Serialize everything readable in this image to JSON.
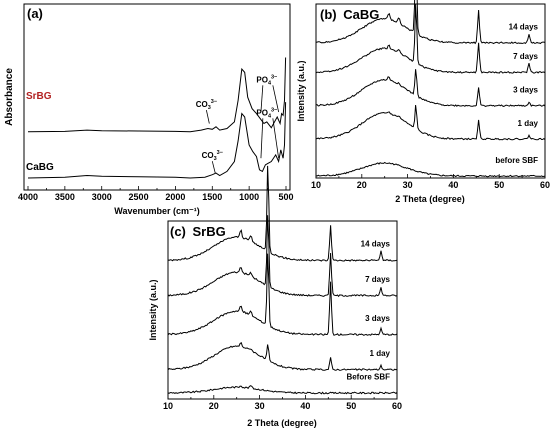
{
  "chart_data": [
    {
      "panel": "(a)",
      "type": "line",
      "title": "",
      "xlabel": "Wavenumber (cm⁻¹)",
      "ylabel": "Absorbance",
      "xlim": [
        4000,
        500
      ],
      "x_ticks": [
        4000,
        3500,
        3000,
        2500,
        2000,
        1500,
        1000,
        500
      ],
      "grid": false,
      "series": [
        {
          "name": "SrBG",
          "color": "#b22222",
          "offset": 0.56,
          "points": [
            [
              4000,
              0.0
            ],
            [
              3500,
              0.005
            ],
            [
              3200,
              0.02
            ],
            [
              3000,
              0.012
            ],
            [
              2500,
              0.01
            ],
            [
              2000,
              0.005
            ],
            [
              1800,
              0.0
            ],
            [
              1650,
              0.02
            ],
            [
              1560,
              0.04
            ],
            [
              1500,
              0.03
            ],
            [
              1450,
              0.06
            ],
            [
              1400,
              0.02
            ],
            [
              1300,
              0.04
            ],
            [
              1200,
              0.12
            ],
            [
              1150,
              0.38
            ],
            [
              1100,
              0.76
            ],
            [
              1060,
              0.72
            ],
            [
              1020,
              0.42
            ],
            [
              960,
              0.28
            ],
            [
              900,
              0.22
            ],
            [
              850,
              0.16
            ],
            [
              800,
              0.1
            ],
            [
              760,
              0.12
            ],
            [
              700,
              0.05
            ],
            [
              620,
              0.18
            ],
            [
              580,
              0.1
            ],
            [
              560,
              0.22
            ],
            [
              540,
              0.2
            ],
            [
              520,
              0.38
            ],
            [
              505,
              0.9
            ]
          ]
        },
        {
          "name": "CaBG",
          "color": "#000000",
          "offset": 0.0,
          "points": [
            [
              4000,
              0.0
            ],
            [
              3500,
              0.01
            ],
            [
              3200,
              0.03
            ],
            [
              3000,
              0.02
            ],
            [
              2500,
              0.015
            ],
            [
              2000,
              0.01
            ],
            [
              1800,
              0.0
            ],
            [
              1600,
              0.01
            ],
            [
              1500,
              0.04
            ],
            [
              1450,
              0.06
            ],
            [
              1400,
              0.03
            ],
            [
              1300,
              0.08
            ],
            [
              1200,
              0.2
            ],
            [
              1150,
              0.45
            ],
            [
              1100,
              0.78
            ],
            [
              1060,
              0.74
            ],
            [
              1000,
              0.4
            ],
            [
              950,
              0.32
            ],
            [
              900,
              0.26
            ],
            [
              860,
              0.1
            ],
            [
              820,
              0.08
            ],
            [
              780,
              0.16
            ],
            [
              740,
              0.18
            ],
            [
              700,
              0.2
            ],
            [
              640,
              0.28
            ],
            [
              600,
              0.2
            ],
            [
              570,
              0.34
            ],
            [
              540,
              0.24
            ],
            [
              520,
              0.4
            ],
            [
              505,
              0.92
            ]
          ]
        }
      ],
      "annotations": [
        {
          "text": "CO",
          "sup": "3−",
          "sub": "3",
          "x": 1580,
          "y": 0.7
        },
        {
          "text": "PO",
          "sup": "3−",
          "sub": "4",
          "x": 730,
          "y": 0.9
        },
        {
          "text": "CO",
          "sup": "3−",
          "sub": "3",
          "x": 1500,
          "y": 0.18
        },
        {
          "text": "PO",
          "sup": "3−",
          "sub": "4",
          "x": 730,
          "y": 0.5
        }
      ]
    },
    {
      "panel": "(b)",
      "type": "line",
      "title": "CaBG",
      "xlabel": "2 Theta (degree)",
      "ylabel": "Intensity (a.u.)",
      "xlim": [
        10,
        60
      ],
      "x_ticks": [
        10,
        20,
        30,
        40,
        50,
        60
      ],
      "grid": false,
      "peak_positions": [
        25.9,
        28.1,
        31.8,
        45.5,
        56.5
      ],
      "series": [
        {
          "name": "before SBF",
          "offset": 0.0,
          "hump": 0.07,
          "peaks": [
            0,
            0,
            0,
            0,
            0
          ]
        },
        {
          "name": "1 day",
          "offset": 0.2,
          "hump": 0.14,
          "peaks": [
            0.01,
            0.01,
            0.13,
            0.1,
            0.02
          ]
        },
        {
          "name": "3 days",
          "offset": 0.38,
          "hump": 0.14,
          "peaks": [
            0.02,
            0.01,
            0.15,
            0.1,
            0.02
          ]
        },
        {
          "name": "7 days",
          "offset": 0.56,
          "hump": 0.13,
          "peaks": [
            0.02,
            0.02,
            0.33,
            0.16,
            0.05
          ]
        },
        {
          "name": "14 days",
          "offset": 0.72,
          "hump": 0.13,
          "peaks": [
            0.03,
            0.03,
            0.44,
            0.18,
            0.05
          ]
        }
      ]
    },
    {
      "panel": "(c)",
      "type": "line",
      "title": "SrBG",
      "xlabel": "2 Theta (degree)",
      "ylabel": "Intensity (a.u.)",
      "xlim": [
        10,
        60
      ],
      "x_ticks": [
        10,
        20,
        30,
        40,
        50,
        60
      ],
      "grid": false,
      "peak_positions": [
        25.9,
        28.1,
        31.8,
        45.5,
        56.5
      ],
      "series": [
        {
          "name": "Before SBF",
          "offset": 0.0,
          "hump": 0.03,
          "peaks": [
            0.01,
            0.015,
            0,
            0,
            0
          ]
        },
        {
          "name": "1 day",
          "offset": 0.12,
          "hump": 0.12,
          "peaks": [
            0.02,
            0.01,
            0.08,
            0.06,
            0.02
          ]
        },
        {
          "name": "3 days",
          "offset": 0.3,
          "hump": 0.12,
          "peaks": [
            0.03,
            0.02,
            0.38,
            0.27,
            0.03
          ]
        },
        {
          "name": "7 days",
          "offset": 0.5,
          "hump": 0.12,
          "peaks": [
            0.03,
            0.02,
            0.38,
            0.22,
            0.04
          ]
        },
        {
          "name": "14 days",
          "offset": 0.68,
          "hump": 0.12,
          "peaks": [
            0.04,
            0.03,
            0.45,
            0.18,
            0.05
          ]
        }
      ]
    }
  ]
}
